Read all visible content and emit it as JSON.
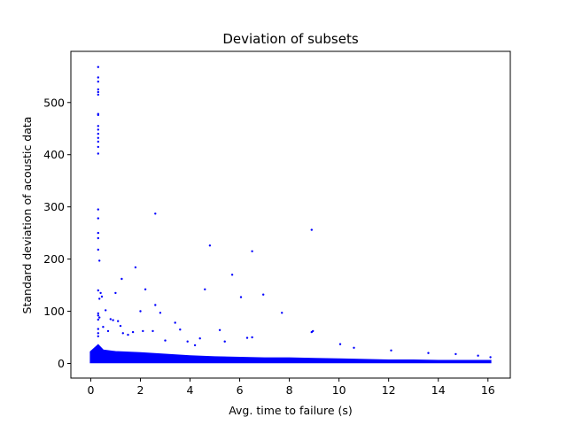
{
  "chart_data": {
    "type": "scatter",
    "title": "Deviation of subsets",
    "xlabel": "Avg. time to failure (s)",
    "ylabel": "Standard deviation of acoustic data",
    "xlim": [
      -0.8,
      16.9
    ],
    "ylim": [
      -28,
      598
    ],
    "xticks": [
      0,
      2,
      4,
      6,
      8,
      10,
      12,
      14,
      16
    ],
    "yticks": [
      0,
      100,
      200,
      300,
      400,
      500
    ],
    "grid": false,
    "legend": "none",
    "marker_color": "#0000ff",
    "dense_band": {
      "x_range": [
        0.0,
        16.1
      ],
      "upper_envelope": [
        [
          0.0,
          22
        ],
        [
          0.3,
          35
        ],
        [
          0.5,
          25
        ],
        [
          1.0,
          22
        ],
        [
          2.0,
          20
        ],
        [
          3.0,
          17
        ],
        [
          4.0,
          14
        ],
        [
          5.0,
          12
        ],
        [
          6.0,
          11
        ],
        [
          7.0,
          10
        ],
        [
          8.0,
          10
        ],
        [
          9.0,
          9
        ],
        [
          10.0,
          8
        ],
        [
          11.0,
          7
        ],
        [
          12.0,
          6
        ],
        [
          13.0,
          6
        ],
        [
          14.0,
          5
        ],
        [
          15.0,
          5
        ],
        [
          16.1,
          5
        ]
      ],
      "lower_bound": 2
    },
    "series": [
      {
        "points": [
          [
            0.3,
            568
          ],
          [
            0.3,
            548
          ],
          [
            0.3,
            540
          ],
          [
            0.3,
            525
          ],
          [
            0.3,
            520
          ],
          [
            0.3,
            515
          ],
          [
            0.3,
            478
          ],
          [
            0.3,
            476
          ],
          [
            0.3,
            455
          ],
          [
            0.3,
            448
          ],
          [
            0.3,
            440
          ],
          [
            0.3,
            432
          ],
          [
            0.3,
            425
          ],
          [
            0.3,
            415
          ],
          [
            0.3,
            402
          ],
          [
            0.3,
            295
          ],
          [
            0.3,
            278
          ],
          [
            0.3,
            250
          ],
          [
            0.3,
            240
          ],
          [
            0.3,
            218
          ],
          [
            0.35,
            197
          ],
          [
            0.3,
            140
          ],
          [
            0.4,
            135
          ],
          [
            0.45,
            128
          ],
          [
            0.35,
            124
          ],
          [
            0.3,
            96
          ],
          [
            0.3,
            92
          ],
          [
            0.35,
            88
          ],
          [
            0.3,
            84
          ],
          [
            0.3,
            66
          ],
          [
            0.3,
            58
          ],
          [
            0.3,
            52
          ],
          [
            0.6,
            102
          ],
          [
            0.8,
            85
          ],
          [
            0.9,
            83
          ],
          [
            1.0,
            135
          ],
          [
            1.1,
            81
          ],
          [
            1.2,
            72
          ],
          [
            1.3,
            58
          ],
          [
            1.25,
            162
          ],
          [
            0.5,
            70
          ],
          [
            0.7,
            62
          ],
          [
            1.5,
            55
          ],
          [
            1.7,
            60
          ],
          [
            1.8,
            184
          ],
          [
            2.0,
            100
          ],
          [
            2.1,
            62
          ],
          [
            2.2,
            142
          ],
          [
            2.5,
            62
          ],
          [
            2.6,
            287
          ],
          [
            2.6,
            112
          ],
          [
            2.8,
            97
          ],
          [
            3.0,
            44
          ],
          [
            3.4,
            78
          ],
          [
            3.6,
            65
          ],
          [
            3.9,
            42
          ],
          [
            4.2,
            35
          ],
          [
            4.4,
            48
          ],
          [
            4.6,
            142
          ],
          [
            4.8,
            226
          ],
          [
            5.2,
            64
          ],
          [
            5.4,
            42
          ],
          [
            5.7,
            170
          ],
          [
            6.05,
            127
          ],
          [
            6.3,
            49
          ],
          [
            6.5,
            215
          ],
          [
            6.5,
            50
          ],
          [
            6.95,
            132
          ],
          [
            7.7,
            97
          ],
          [
            8.9,
            256
          ],
          [
            8.9,
            60
          ],
          [
            8.95,
            62
          ],
          [
            10.05,
            37
          ],
          [
            10.6,
            30
          ],
          [
            12.1,
            25
          ],
          [
            13.6,
            20
          ],
          [
            14.7,
            18
          ],
          [
            15.6,
            15
          ],
          [
            16.1,
            12
          ]
        ]
      }
    ]
  }
}
